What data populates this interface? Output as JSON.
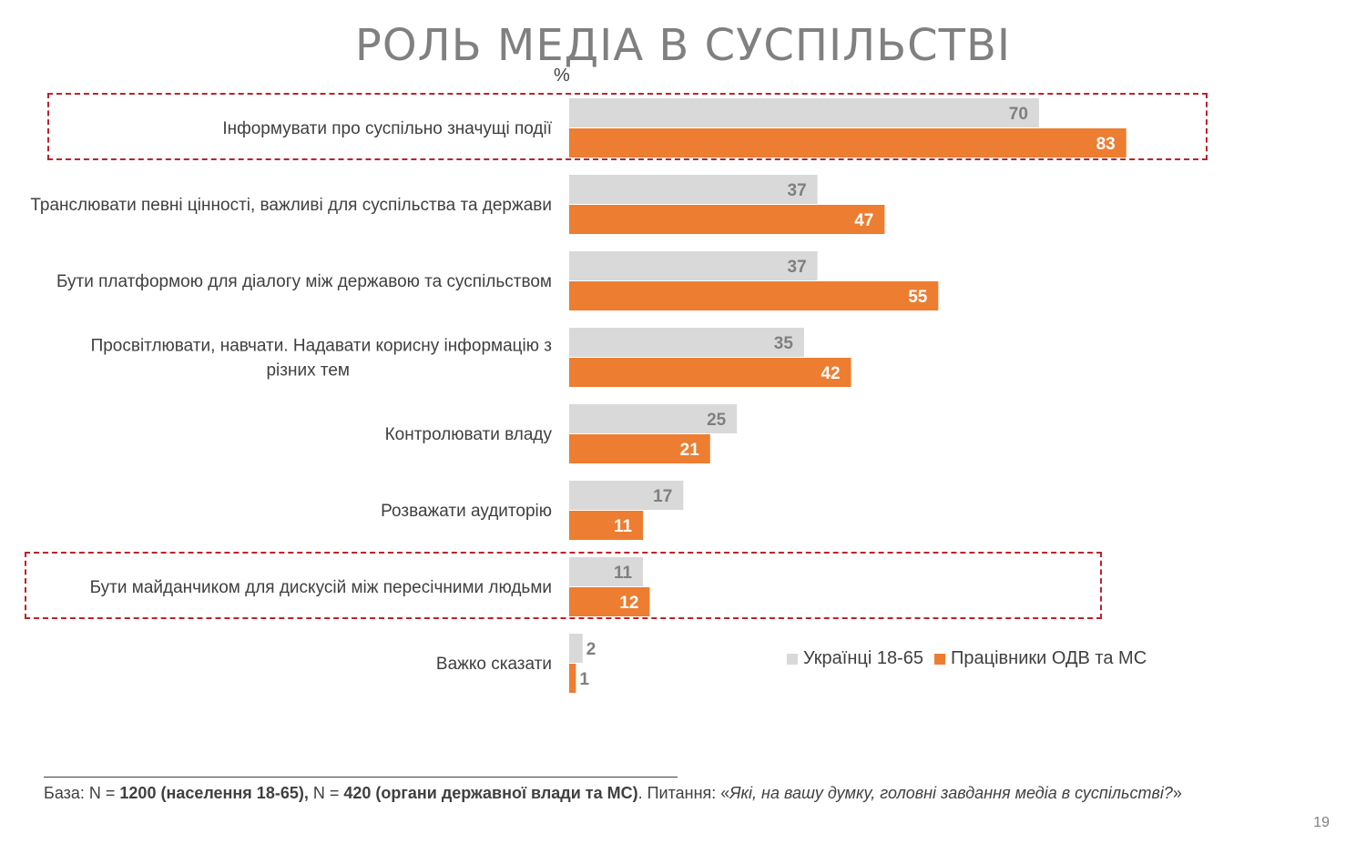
{
  "page_title": "РОЛЬ МЕДІА В СУСПІЛЬСТВІ",
  "unit_label": "%",
  "chart_data": {
    "type": "bar",
    "orientation": "horizontal",
    "categories": [
      "Інформувати про суспільно значущі події",
      "Транслювати певні цінності, важливі для суспільства та держави",
      "Бути платформою для діалогу між державою та суспільством",
      "Просвітлювати, навчати. Надавати корисну інформацію з різних тем",
      "Контролювати владу",
      "Розважати аудиторію",
      "Бути майданчиком для дискусій між пересічними людьми",
      "Важко сказати"
    ],
    "category_lines": [
      [
        "Інформувати про суспільно значущі події"
      ],
      [
        "Транслювати певні цінності, важливі для суспільства та держави"
      ],
      [
        "Бути платформою для діалогу між державою та суспільством"
      ],
      [
        "Просвітлювати, навчати. Надавати корисну інформацію з",
        "різних тем"
      ],
      [
        "Контролювати владу"
      ],
      [
        "Розважати аудиторію"
      ],
      [
        "Бути майданчиком для дискусій між пересічними людьми"
      ],
      [
        "Важко сказати"
      ]
    ],
    "series": [
      {
        "name": "Українці 18-65",
        "color": "#d9d9d9",
        "label_color": "#7f7f7f",
        "values": [
          70,
          37,
          37,
          35,
          25,
          17,
          11,
          2
        ]
      },
      {
        "name": "Працівники ОДВ та МС",
        "color": "#ed7d31",
        "label_color": "#ffffff",
        "values": [
          83,
          47,
          55,
          42,
          21,
          11,
          12,
          1
        ]
      }
    ],
    "highlighted_categories": [
      0,
      6
    ],
    "highlight_color": "#c0212b",
    "legend_position": "bottom-right",
    "grid": false,
    "xlim": [
      0,
      100
    ]
  },
  "footnote": {
    "base_prefix": "База: N = ",
    "base_pop": "1200 (населення 18-65),",
    "base_mid": " N = ",
    "base_org": "420 (органи державної влади та МС)",
    "question_prefix": ". Питання: «",
    "question": "Які, на вашу думку, головні завдання медіа в суспільстві?",
    "question_suffix": "»"
  },
  "page_number": "19"
}
